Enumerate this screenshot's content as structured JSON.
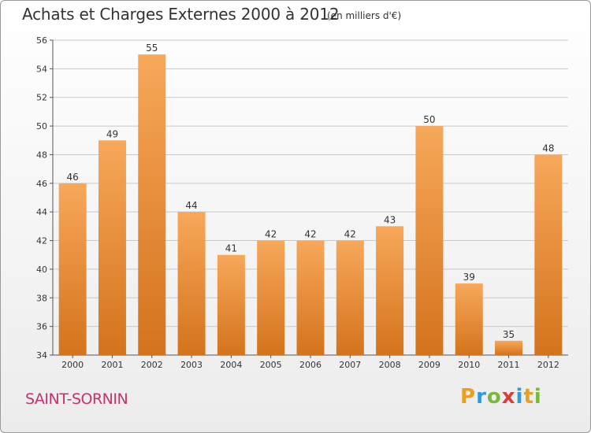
{
  "colors": {
    "bar_light": "#f7a85a",
    "bar_dark": "#d4731c",
    "grid": "#c8c8c8",
    "location": "#c4336f"
  },
  "location": "SAINT-SORNIN",
  "logo": {
    "letters": [
      {
        "char": "P",
        "color": "#e8a020"
      },
      {
        "char": "r",
        "color": "#2e9ad8"
      },
      {
        "char": "o",
        "color": "#78b83a"
      },
      {
        "char": "x",
        "color": "#d83c3c"
      },
      {
        "char": "i",
        "color": "#2e9ad8"
      },
      {
        "char": "t",
        "color": "#e8a020"
      },
      {
        "char": "i",
        "color": "#78b83a"
      }
    ]
  },
  "chart_data": {
    "type": "bar",
    "title": "Achats et Charges Externes 2000 à 2012",
    "subtitle": "(en milliers d'€)",
    "categories": [
      "2000",
      "2001",
      "2002",
      "2003",
      "2004",
      "2005",
      "2006",
      "2007",
      "2008",
      "2009",
      "2010",
      "2011",
      "2012"
    ],
    "values": [
      46,
      49,
      55,
      44,
      41,
      42,
      42,
      42,
      43,
      50,
      39,
      35,
      48
    ],
    "ylim": [
      34,
      56
    ],
    "yticks": [
      34,
      36,
      38,
      40,
      42,
      44,
      46,
      48,
      50,
      52,
      54,
      56
    ],
    "grid": true,
    "xlabel": "",
    "ylabel": ""
  }
}
